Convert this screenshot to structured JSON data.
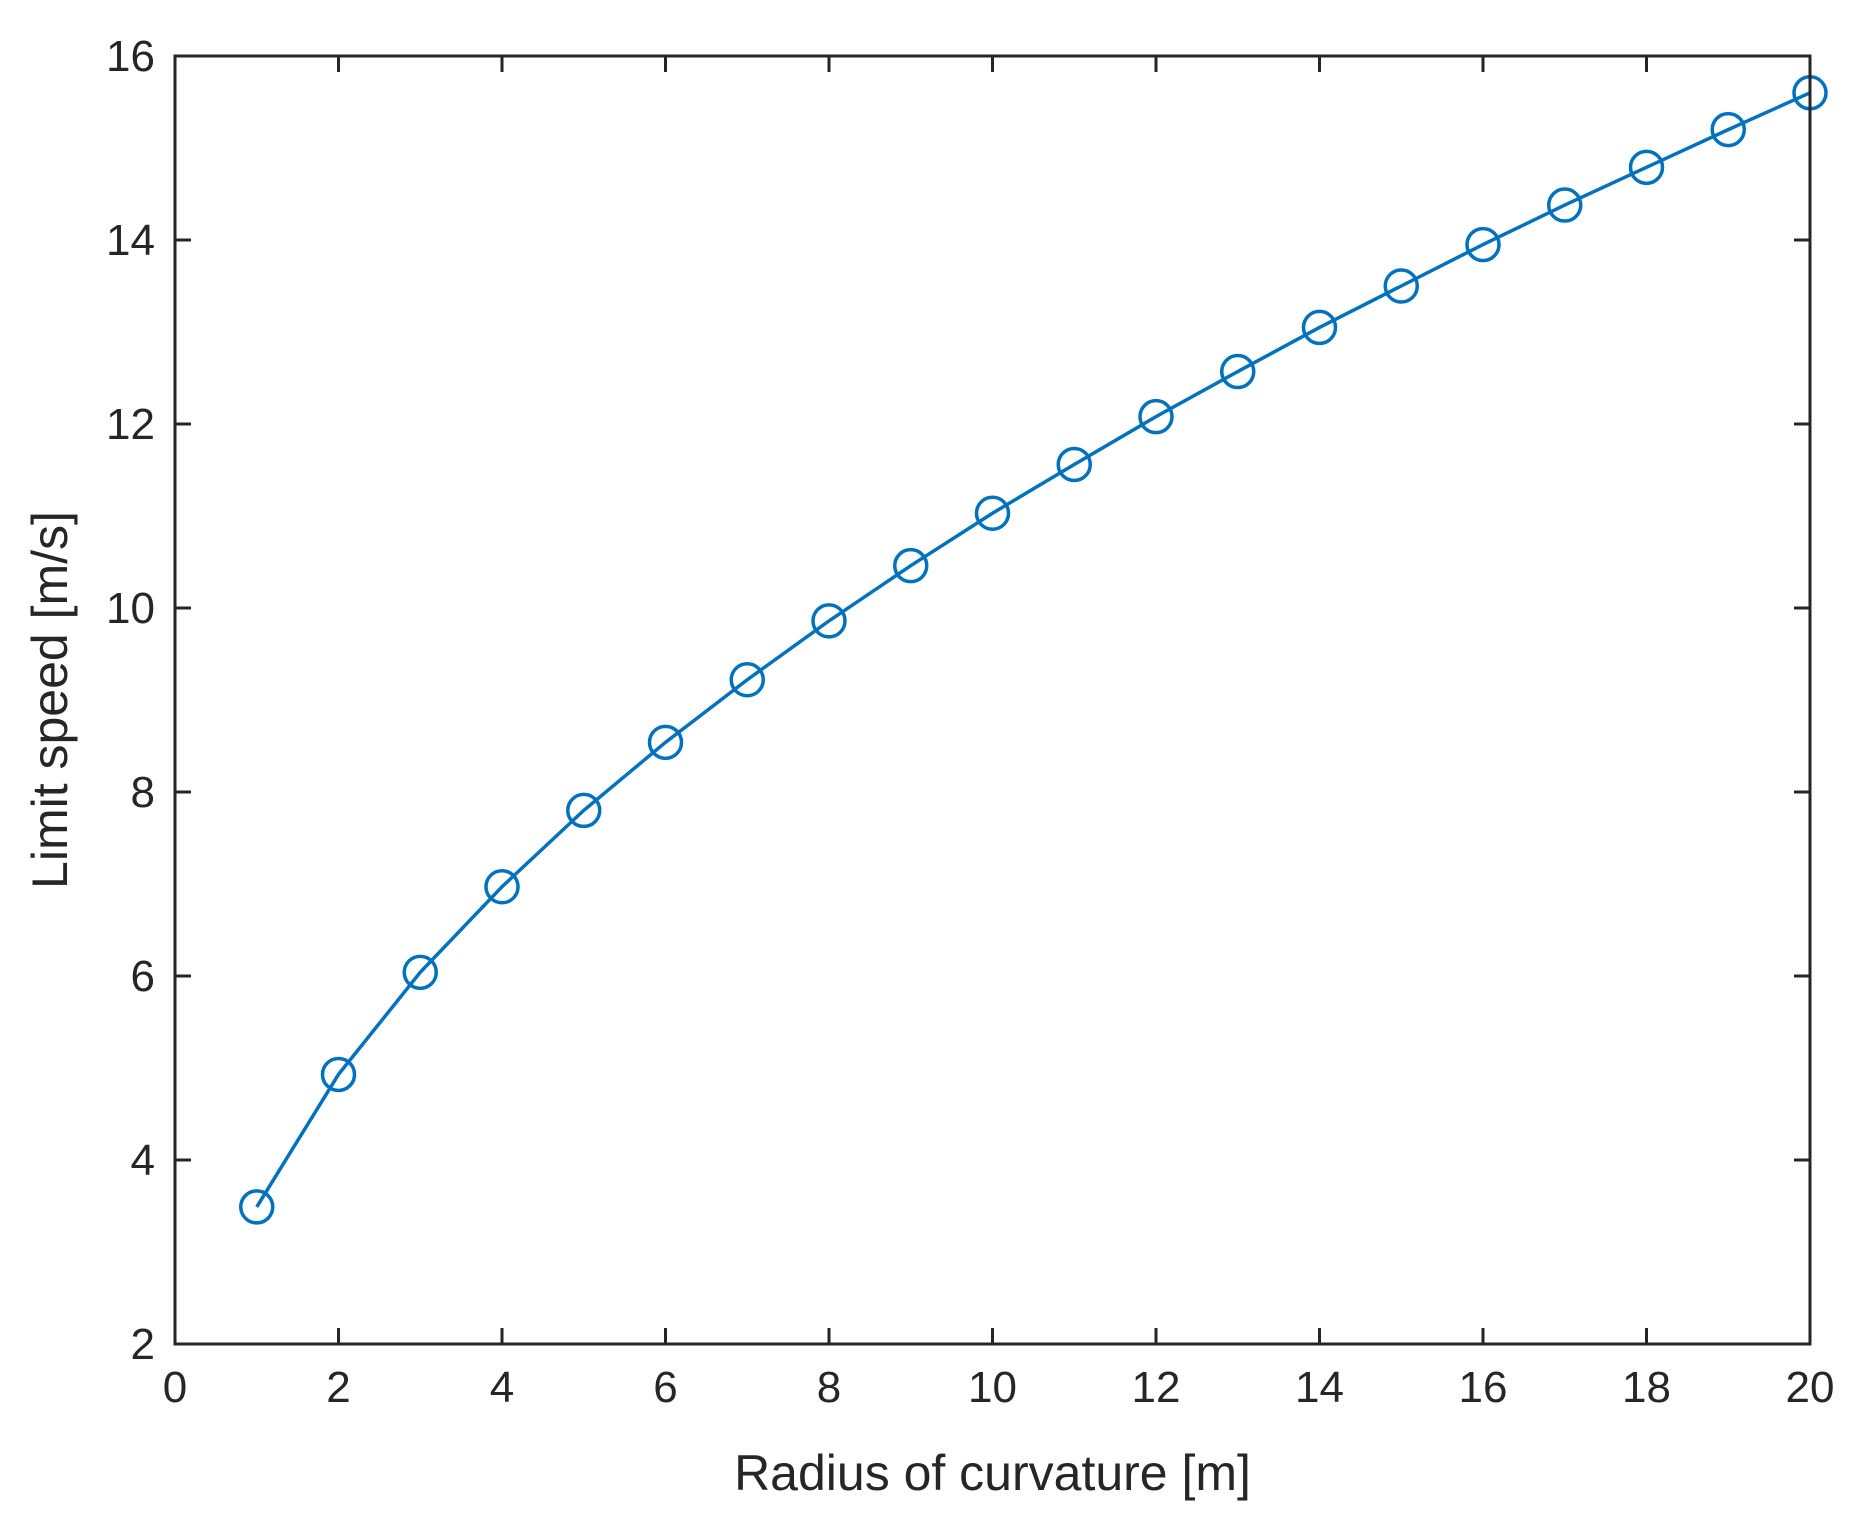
{
  "chart_data": {
    "type": "line",
    "title": "",
    "xlabel": "Radius of curvature [m]",
    "ylabel": "Limit speed [m/s]",
    "xlim": [
      0,
      20
    ],
    "ylim": [
      2,
      16
    ],
    "xticks": [
      0,
      2,
      4,
      6,
      8,
      10,
      12,
      14,
      16,
      18,
      20
    ],
    "yticks": [
      2,
      4,
      6,
      8,
      10,
      12,
      14,
      16
    ],
    "grid": false,
    "box": true,
    "marker": "circle",
    "color": "#0072BD",
    "series": [
      {
        "x": [
          1,
          2,
          3,
          4,
          5,
          6,
          7,
          8,
          9,
          10,
          11,
          12,
          13,
          14,
          15,
          16,
          17,
          18,
          19,
          20
        ],
        "y": [
          3.49,
          4.93,
          6.04,
          6.97,
          7.8,
          8.54,
          9.22,
          9.86,
          10.46,
          11.03,
          11.56,
          12.08,
          12.57,
          13.05,
          13.5,
          13.95,
          14.38,
          14.79,
          15.2,
          15.6
        ]
      }
    ]
  }
}
